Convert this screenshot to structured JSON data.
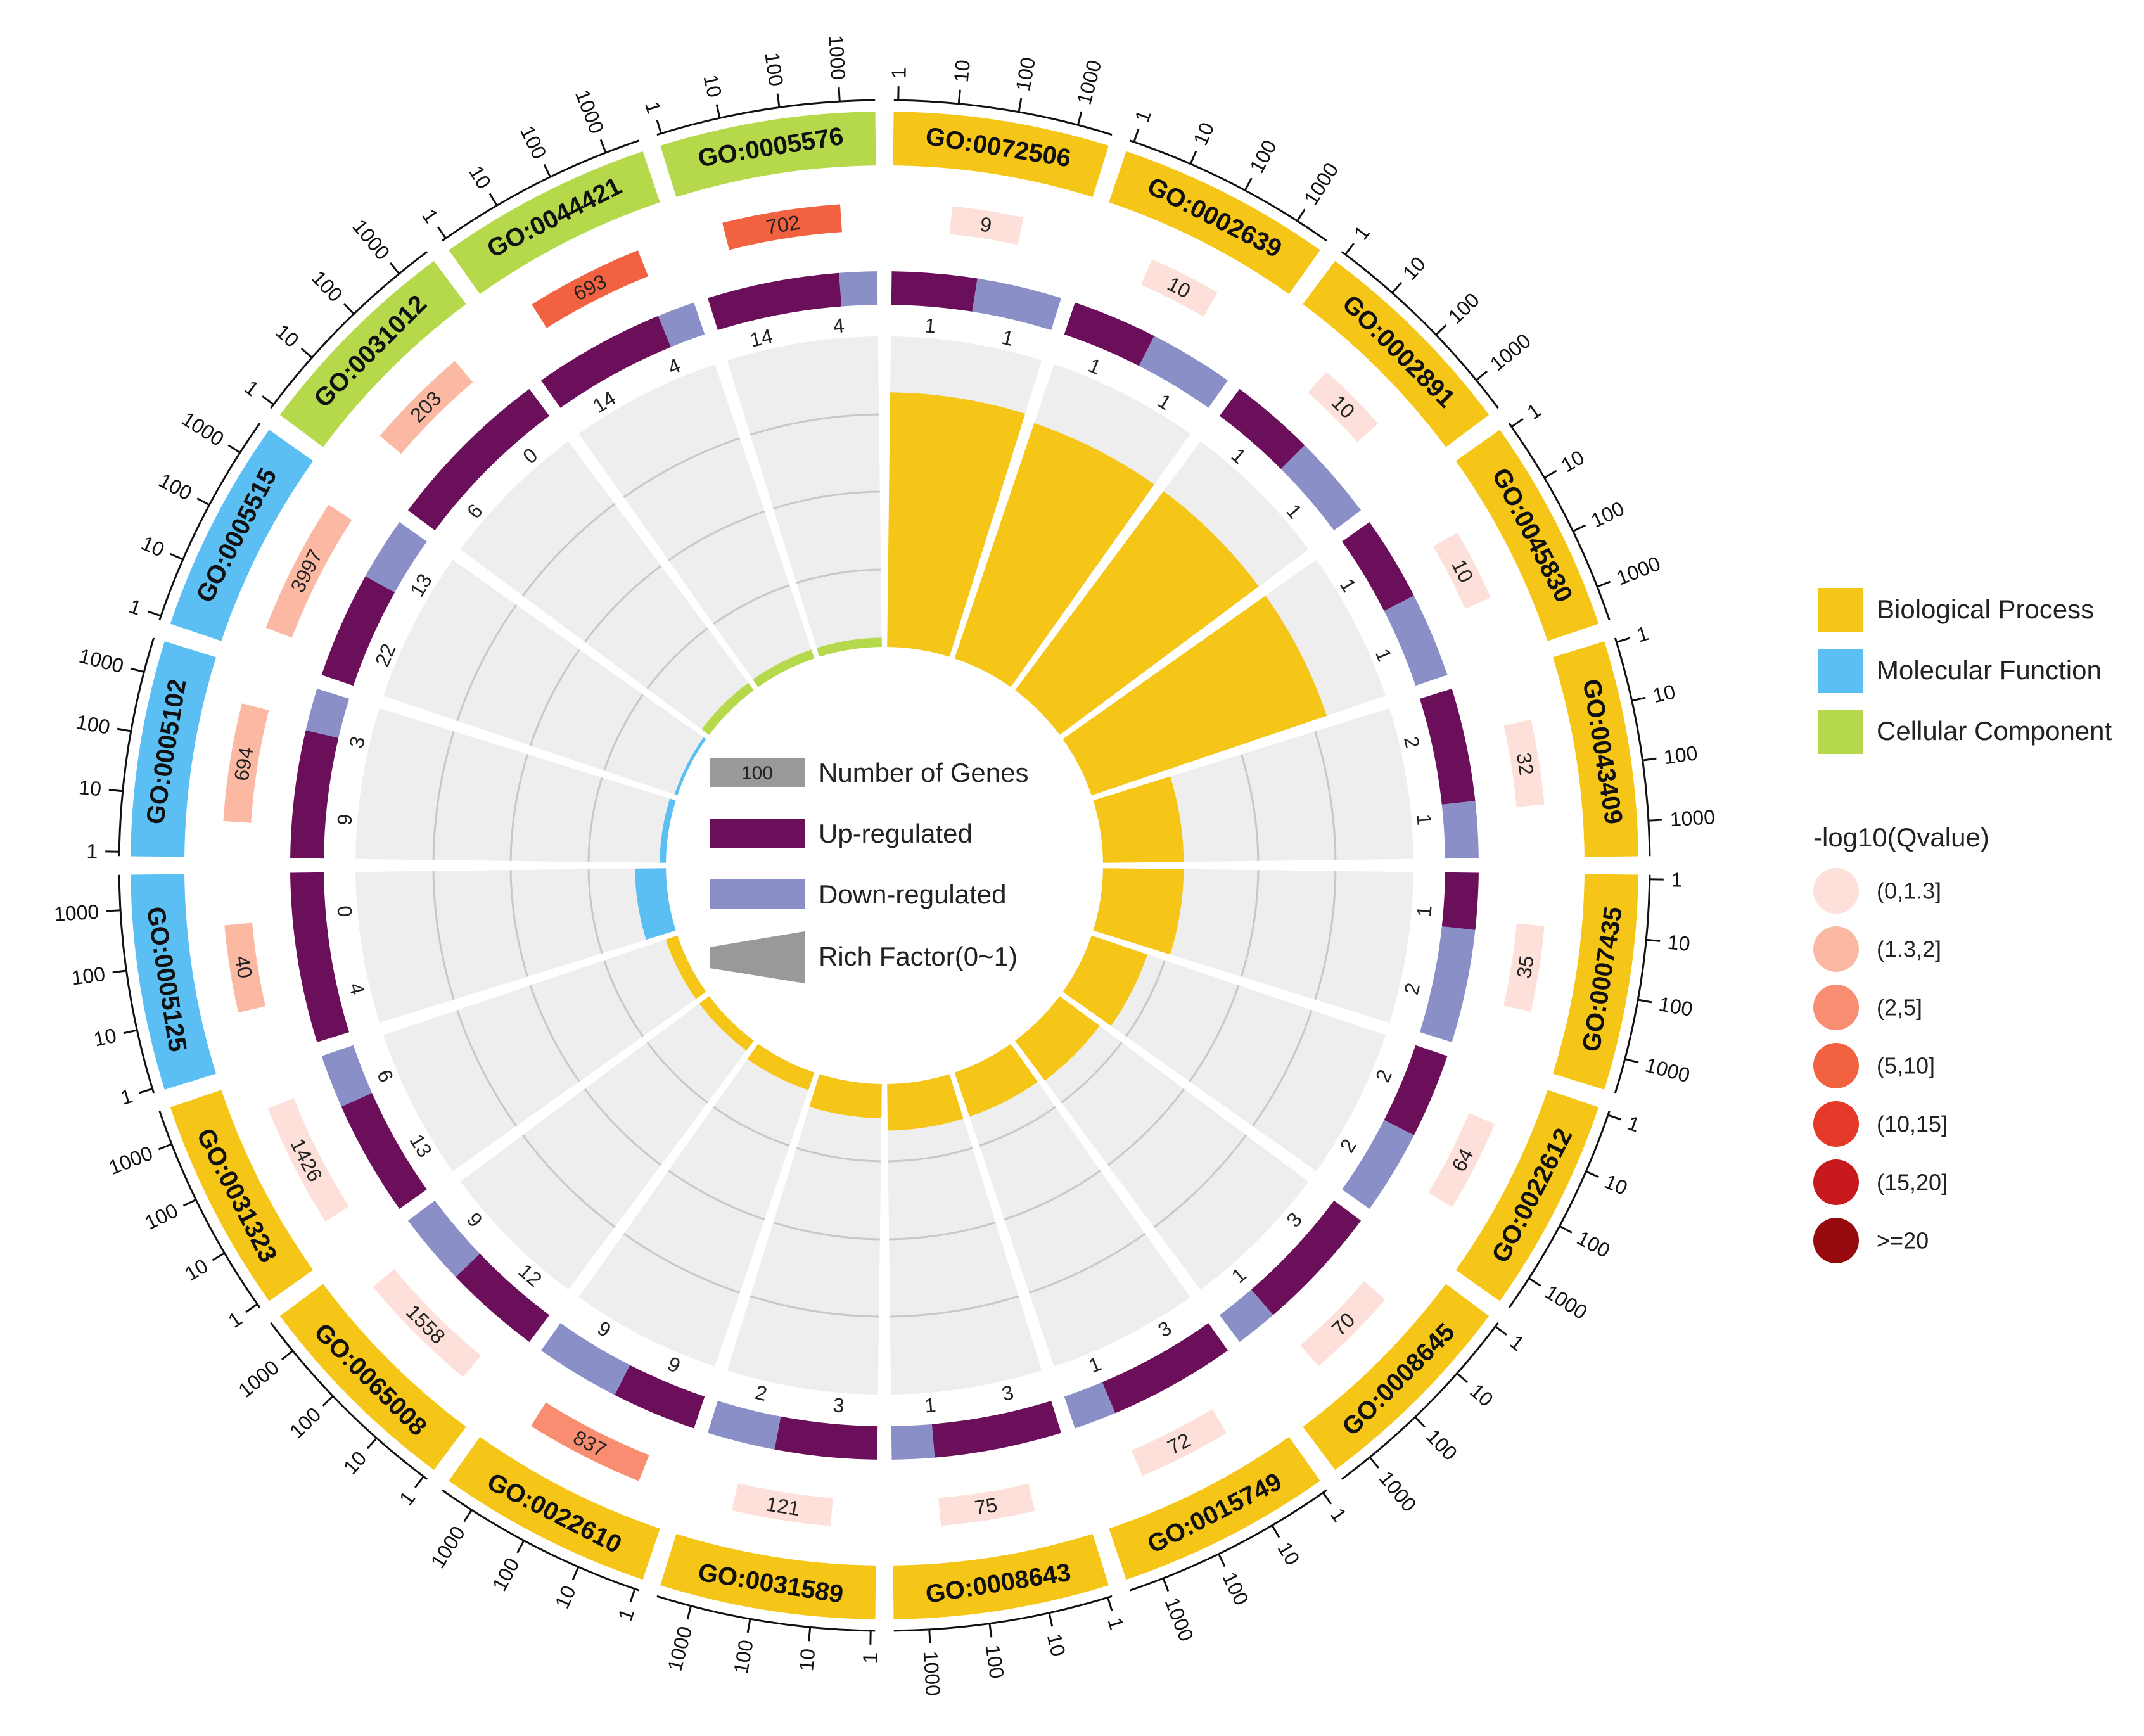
{
  "chart_data": {
    "type": "circular-bar",
    "title": "",
    "term_count": 20,
    "scale_ticks": [
      "1",
      "10",
      "100",
      "1000"
    ],
    "categories": {
      "bp": {
        "label": "Biological Process",
        "color": "#F5C518"
      },
      "mf": {
        "label": "Molecular Function",
        "color": "#5BBFF4"
      },
      "cc": {
        "label": "Cellular Component",
        "color": "#B5D94A"
      }
    },
    "legend_items": {
      "genes": "Number of Genes",
      "genes_sample": "100",
      "up": "Up-regulated",
      "down": "Down-regulated",
      "rich": "Rich Factor(0~1)"
    },
    "colors": {
      "up": "#6B0F5A",
      "down": "#8A8FC8",
      "rich_bg": "#EEEEEE",
      "grid": "#C8C8C8",
      "gene_box": "#999999"
    },
    "qvalue_legend": {
      "title": "-log10(Qvalue)",
      "bins": [
        {
          "label": "(0,1.3]",
          "color": "#FDE0D9"
        },
        {
          "label": "(1.3,2]",
          "color": "#FBB9A3"
        },
        {
          "label": "(2,5]",
          "color": "#F88D72"
        },
        {
          "label": "(5,10]",
          "color": "#F26240"
        },
        {
          "label": "(10,15]",
          "color": "#E53A2A"
        },
        {
          "label": "(15,20]",
          "color": "#C8191D"
        },
        {
          "label": ">=20",
          "color": "#960A0E"
        }
      ]
    },
    "terms": [
      {
        "id": "GO:0072506",
        "category": "bp",
        "background_genes": 9,
        "background_label": "9",
        "qbin": 0,
        "up": 1,
        "down": 1,
        "rich_factor": 0.82
      },
      {
        "id": "GO:0002639",
        "category": "bp",
        "background_genes": 10,
        "background_label": "10",
        "qbin": 0,
        "up": 1,
        "down": 1,
        "rich_factor": 0.8
      },
      {
        "id": "GO:0002891",
        "category": "bp",
        "background_genes": 10,
        "background_label": "10",
        "qbin": 0,
        "up": 1,
        "down": 1,
        "rich_factor": 0.8
      },
      {
        "id": "GO:0045830",
        "category": "bp",
        "background_genes": 10,
        "background_label": "10",
        "qbin": 0,
        "up": 1,
        "down": 1,
        "rich_factor": 0.8
      },
      {
        "id": "GO:0043409",
        "category": "bp",
        "background_genes": 32,
        "background_label": "32",
        "qbin": 0,
        "up": 2,
        "down": 1,
        "rich_factor": 0.26
      },
      {
        "id": "GO:0007435",
        "category": "bp",
        "background_genes": 35,
        "background_label": "35",
        "qbin": 0,
        "up": 1,
        "down": 2,
        "rich_factor": 0.26
      },
      {
        "id": "GO:0022612",
        "category": "bp",
        "background_genes": 64,
        "background_label": "64",
        "qbin": 0,
        "up": 2,
        "down": 2,
        "rich_factor": 0.19
      },
      {
        "id": "GO:0008645",
        "category": "bp",
        "background_genes": 70,
        "background_label": "70",
        "qbin": 0,
        "up": 3,
        "down": 1,
        "rich_factor": 0.16
      },
      {
        "id": "GO:0015749",
        "category": "bp",
        "background_genes": 72,
        "background_label": "72",
        "qbin": 0,
        "up": 3,
        "down": 1,
        "rich_factor": 0.15
      },
      {
        "id": "GO:0008643",
        "category": "bp",
        "background_genes": 75,
        "background_label": "75",
        "qbin": 0,
        "up": 3,
        "down": 1,
        "rich_factor": 0.15
      },
      {
        "id": "GO:0031589",
        "category": "bp",
        "background_genes": 121,
        "background_label": "121",
        "qbin": 0,
        "up": 3,
        "down": 2,
        "rich_factor": 0.11
      },
      {
        "id": "GO:0022610",
        "category": "bp",
        "background_genes": 837,
        "background_label": "837",
        "qbin": 2,
        "up": 9,
        "down": 9,
        "rich_factor": 0.06
      },
      {
        "id": "GO:0065008",
        "category": "bp",
        "background_genes": 1558,
        "background_label": "1558",
        "qbin": 0,
        "up": 12,
        "down": 9,
        "rich_factor": 0.04
      },
      {
        "id": "GO:0031323",
        "category": "bp",
        "background_genes": 1426,
        "background_label": "1426",
        "qbin": 0,
        "up": 13,
        "down": 6,
        "rich_factor": 0.04
      },
      {
        "id": "GO:0005125",
        "category": "mf",
        "background_genes": 40,
        "background_label": "40",
        "qbin": 1,
        "up": 4,
        "down": 0,
        "rich_factor": 0.1
      },
      {
        "id": "GO:0005102",
        "category": "mf",
        "background_genes": 694,
        "background_label": "694",
        "qbin": 1,
        "up": 9,
        "down": 3,
        "rich_factor": 0.02
      },
      {
        "id": "GO:0005515",
        "category": "mf",
        "background_genes": 3997,
        "background_label": "3997",
        "qbin": 1,
        "up": 22,
        "down": 13,
        "rich_factor": 0.01
      },
      {
        "id": "GO:0031012",
        "category": "cc",
        "background_genes": 203,
        "background_label": "203",
        "qbin": 1,
        "up": 6,
        "down": 0,
        "rich_factor": 0.03
      },
      {
        "id": "GO:0044421",
        "category": "cc",
        "background_genes": 693,
        "background_label": "693",
        "qbin": 3,
        "up": 14,
        "down": 4,
        "rich_factor": 0.03
      },
      {
        "id": "GO:0005576",
        "category": "cc",
        "background_genes": 702,
        "background_label": "702",
        "qbin": 3,
        "up": 14,
        "down": 4,
        "rich_factor": 0.03
      }
    ]
  }
}
